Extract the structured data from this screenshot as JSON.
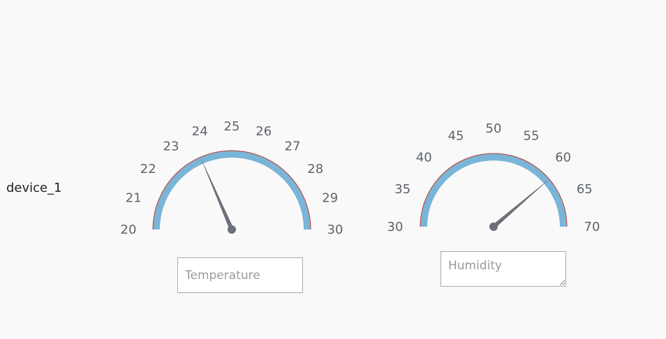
{
  "device": {
    "name": "device_1"
  },
  "gauges": [
    {
      "id": "temperature",
      "min": 20,
      "max": 30,
      "ticks": [
        "20",
        "21",
        "22",
        "23",
        "24",
        "25",
        "26",
        "27",
        "28",
        "29",
        "30"
      ],
      "value": 23.7,
      "field": {
        "placeholder": "Temperature",
        "value": ""
      }
    },
    {
      "id": "humidity",
      "min": 30,
      "max": 70,
      "ticks": [
        "30",
        "35",
        "40",
        "45",
        "50",
        "55",
        "60",
        "65",
        "70"
      ],
      "value": 61,
      "field": {
        "placeholder": "Humidity",
        "value": ""
      }
    }
  ],
  "colors": {
    "arc": "#7ab5d8",
    "arc_edge": "#c0392b",
    "needle": "#6b7079",
    "tick_text": "#5d636b"
  }
}
